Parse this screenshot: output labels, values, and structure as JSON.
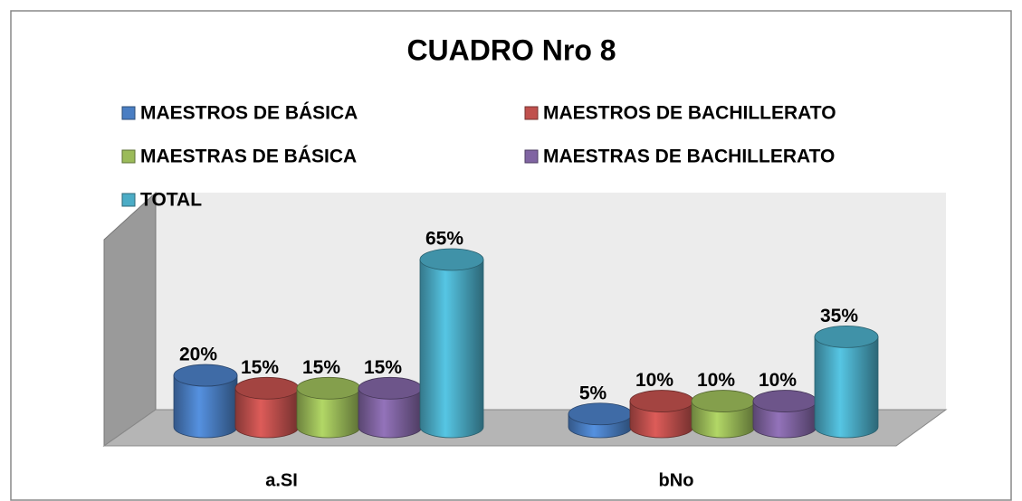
{
  "chart_data": {
    "type": "bar3d",
    "title": "CUADRO Nro 8",
    "categories": [
      "a.SI",
      "bNo"
    ],
    "series": [
      {
        "name": "MAESTROS DE BÁSICA",
        "color": "#4a7ec3",
        "values": [
          20,
          5
        ],
        "value_labels": [
          "20%",
          "5%"
        ]
      },
      {
        "name": "MAESTROS DE BACHILLERATO",
        "color": "#c0504d",
        "values": [
          15,
          10
        ],
        "value_labels": [
          "15%",
          "10%"
        ]
      },
      {
        "name": "MAESTRAS DE BÁSICA",
        "color": "#9bbb59",
        "values": [
          15,
          10
        ],
        "value_labels": [
          "15%",
          "10%"
        ]
      },
      {
        "name": "MAESTRAS DE BACHILLERATO",
        "color": "#8064a2",
        "values": [
          15,
          10
        ],
        "value_labels": [
          "15%",
          "10%"
        ]
      },
      {
        "name": "TOTAL",
        "color": "#4bacc6",
        "values": [
          65,
          35
        ],
        "value_labels": [
          "65%",
          "35%"
        ]
      }
    ]
  }
}
